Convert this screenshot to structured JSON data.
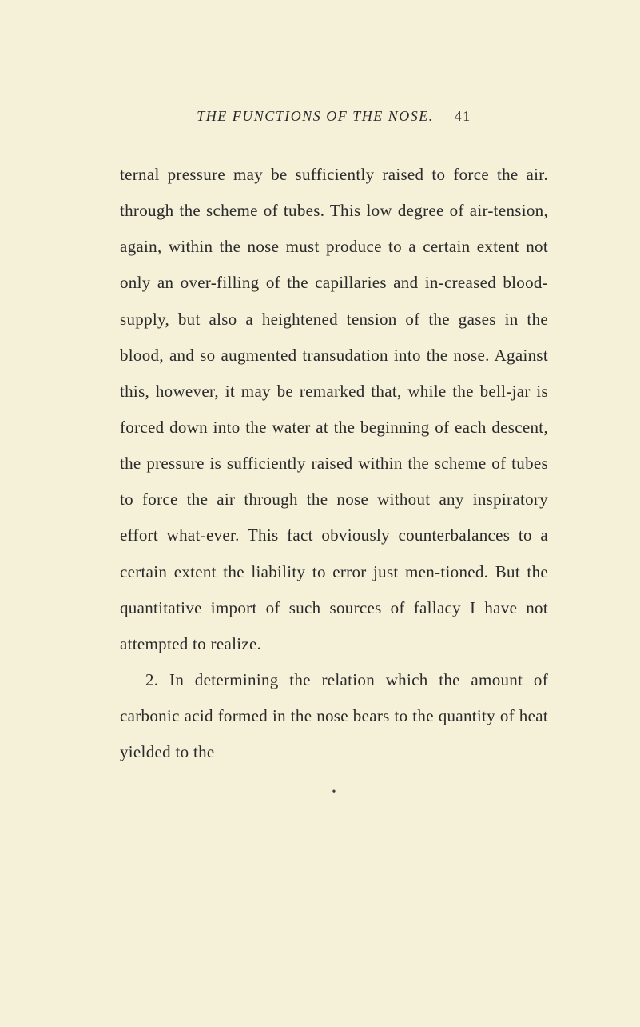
{
  "header": {
    "title": "THE FUNCTIONS OF THE NOSE.",
    "pageNumber": "41"
  },
  "paragraphs": {
    "p1": "ternal pressure may be sufficiently raised to force the air. through the scheme of tubes. This low degree of air-tension, again, within the nose must produce to a certain extent not only an over-filling of the capillaries and in-creased blood-supply, but also a heightened tension of the gases in the blood, and so augmented transudation into the nose. Against this, however, it may be remarked that, while the bell-jar is forced down into the water at the beginning of each descent, the pressure is sufficiently raised within the scheme of tubes to force the air through the nose without any inspiratory effort what-ever. This fact obviously counterbalances to a certain extent the liability to error just men-tioned. But the quantitative import of such sources of fallacy I have not attempted to realize.",
    "p2": "2. In determining the relation which the amount of carbonic acid formed in the nose bears to the quantity of heat yielded to the"
  },
  "styling": {
    "backgroundColor": "#f5f0d8",
    "textColor": "#2a2a2a",
    "bodyFontSize": 21,
    "headerFontSize": 18,
    "lineHeight": 2.15,
    "pageWidth": 801,
    "pageHeight": 1284
  }
}
